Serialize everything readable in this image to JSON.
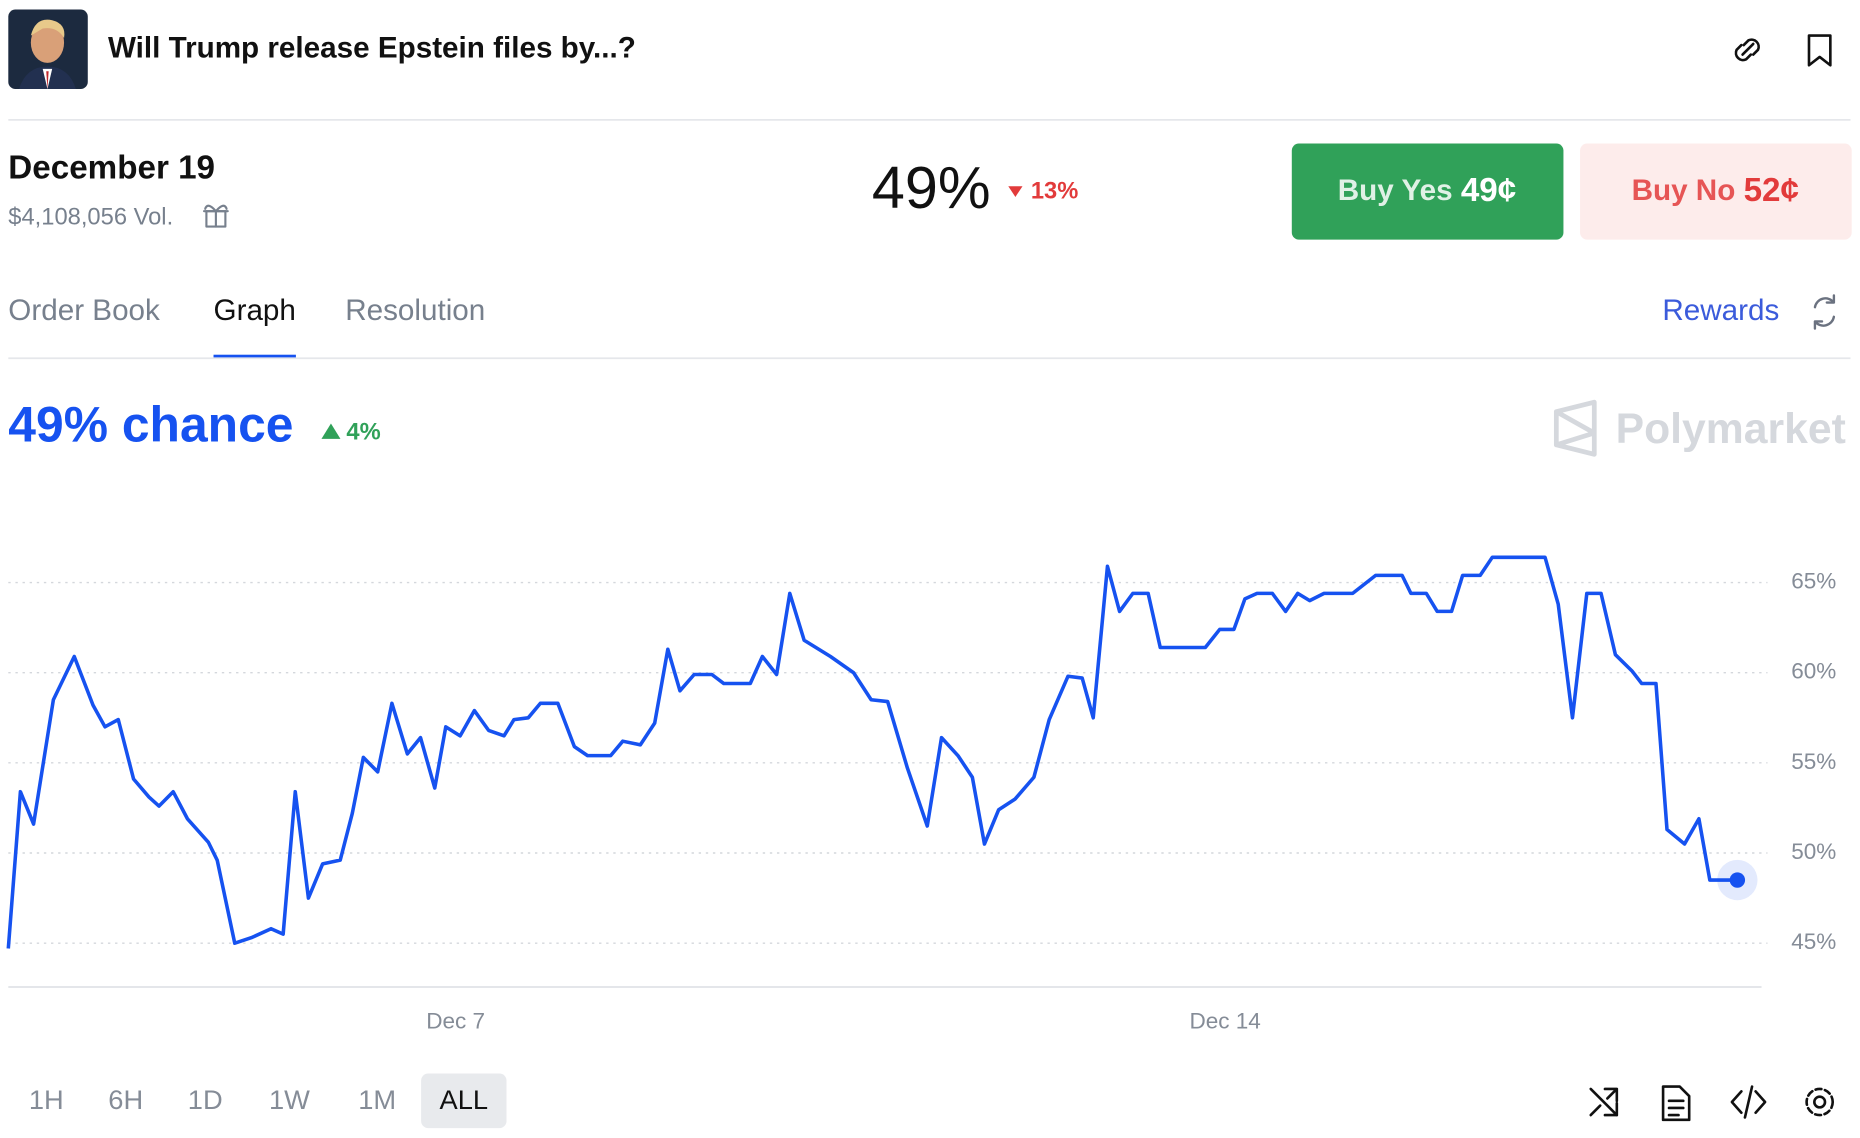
{
  "header": {
    "title": "Will Trump release Epstein files by...?"
  },
  "market": {
    "date": "December 19",
    "volume": "$4,108,056 Vol.",
    "price": "49%",
    "change": "13%",
    "buy_yes_label": "Buy Yes",
    "buy_yes_price": "49¢",
    "buy_no_label": "Buy No",
    "buy_no_price": "52¢"
  },
  "tabs": [
    "Order Book",
    "Graph",
    "Resolution"
  ],
  "active_tab": 1,
  "rewards": "Rewards",
  "chart_data": {
    "type": "line",
    "title": "49% chance",
    "change": "4%",
    "brand": "Polymarket",
    "color": "#1652f0",
    "grid": true,
    "x": [
      2.93,
      3.04,
      3.16,
      3.34,
      3.53,
      3.7,
      3.81,
      3.93,
      4.07,
      4.21,
      4.3,
      4.43,
      4.56,
      4.75,
      4.83,
      4.99,
      5.14,
      5.32,
      5.43,
      5.54,
      5.66,
      5.79,
      5.95,
      6.06,
      6.16,
      6.29,
      6.42,
      6.56,
      6.68,
      6.81,
      6.91,
      7.04,
      7.17,
      7.3,
      7.44,
      7.53,
      7.66,
      7.77,
      7.93,
      8.08,
      8.2,
      8.41,
      8.52,
      8.68,
      8.81,
      8.93,
      9.04,
      9.17,
      9.33,
      9.44,
      9.68,
      9.79,
      9.92,
      10.04,
      10.17,
      10.41,
      10.62,
      10.78,
      10.93,
      11.11,
      11.29,
      11.42,
      11.57,
      11.7,
      11.81,
      11.94,
      12.09,
      12.26,
      12.4,
      12.57,
      12.7,
      12.8,
      12.93,
      13.04,
      13.16,
      13.3,
      13.41,
      13.82,
      13.95,
      14.08,
      14.18,
      14.29,
      14.43,
      14.55,
      14.66,
      14.77,
      14.9,
      15.16,
      15.37,
      15.61,
      15.69,
      15.83,
      15.93,
      16.06,
      16.16,
      16.32,
      16.43,
      16.91,
      17.03,
      17.16,
      17.29,
      17.42,
      17.55,
      17.7,
      17.79,
      17.92,
      18.02,
      18.18,
      18.31,
      18.41,
      18.66
    ],
    "values": [
      44.7,
      53.4,
      51.6,
      58.5,
      60.9,
      58.2,
      57.0,
      57.4,
      54.1,
      53.1,
      52.6,
      53.4,
      51.9,
      50.6,
      49.6,
      45.0,
      45.3,
      45.8,
      45.5,
      53.4,
      47.5,
      49.4,
      49.6,
      52.2,
      55.3,
      54.5,
      58.3,
      55.5,
      56.4,
      53.6,
      57.0,
      56.5,
      57.9,
      56.8,
      56.5,
      57.4,
      57.5,
      58.3,
      58.3,
      55.9,
      55.4,
      55.4,
      56.2,
      56.0,
      57.2,
      61.3,
      59.0,
      59.9,
      59.9,
      59.4,
      59.4,
      60.9,
      59.9,
      64.4,
      61.8,
      60.9,
      60.0,
      58.5,
      58.4,
      54.7,
      51.5,
      56.4,
      55.4,
      54.2,
      50.5,
      52.4,
      53.0,
      54.2,
      57.4,
      59.8,
      59.7,
      57.5,
      65.9,
      63.4,
      64.4,
      64.4,
      61.4,
      61.4,
      62.4,
      62.4,
      64.1,
      64.4,
      64.4,
      63.4,
      64.4,
      64.0,
      64.4,
      64.4,
      65.4,
      65.4,
      64.4,
      64.4,
      63.4,
      63.4,
      65.4,
      65.4,
      66.4,
      66.4,
      63.8,
      57.5,
      64.4,
      64.4,
      61.0,
      60.1,
      59.4,
      59.4,
      51.3,
      50.5,
      51.9,
      48.5,
      48.5
    ],
    "xlim": [
      2.93,
      18.88
    ],
    "xticks": [
      {
        "value": 7,
        "label": "Dec 7"
      },
      {
        "value": 14,
        "label": "Dec 14"
      }
    ],
    "ylim": [
      42.57,
      68.36
    ],
    "yticks": [
      {
        "value": 45,
        "label": "45%"
      },
      {
        "value": 50,
        "label": "50%"
      },
      {
        "value": 55,
        "label": "55%"
      },
      {
        "value": 60,
        "label": "60%"
      },
      {
        "value": 65,
        "label": "65%"
      }
    ]
  },
  "ranges": [
    "1H",
    "6H",
    "1D",
    "1W",
    "1M",
    "ALL"
  ],
  "active_range": 5
}
